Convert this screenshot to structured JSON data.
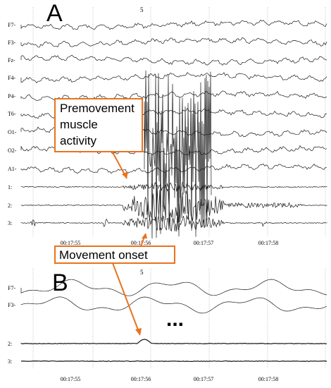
{
  "panel_a": {
    "letter": "A",
    "marker": "5",
    "channels": [
      "F7",
      "F3",
      "Fz",
      "F4",
      "P4",
      "T6",
      "O1",
      "O2",
      "A1",
      "1",
      "2",
      "3"
    ],
    "time_labels": [
      "00:17:55",
      "00:17:56",
      "00:17:57",
      "00:17:58"
    ]
  },
  "panel_b": {
    "letter": "B",
    "marker": "5",
    "channels_top": [
      "F7",
      "F3"
    ],
    "ellipsis": "...",
    "channels_bottom": [
      "2",
      "3"
    ],
    "time_labels": [
      "00:17:55",
      "00:17:56",
      "00:17:57",
      "00:17:58"
    ]
  },
  "annotations": {
    "premovement": [
      "Premovement",
      "muscle",
      "activity"
    ],
    "movement_onset": "Movement onset",
    "color": "#e8731f"
  },
  "chart_data": {
    "type": "line",
    "x_unit": "time (hh:mm:ss)",
    "x_ticks": [
      "00:17:55",
      "00:17:56",
      "00:17:57",
      "00:17:58"
    ],
    "panels": [
      {
        "name": "A",
        "series": [
          "F7",
          "F3",
          "Fz",
          "F4",
          "P4",
          "T6",
          "O1",
          "O2",
          "A1",
          "1",
          "2",
          "3"
        ]
      },
      {
        "name": "B",
        "series": [
          "F7",
          "F3",
          "2",
          "3"
        ]
      }
    ],
    "grid": true
  }
}
